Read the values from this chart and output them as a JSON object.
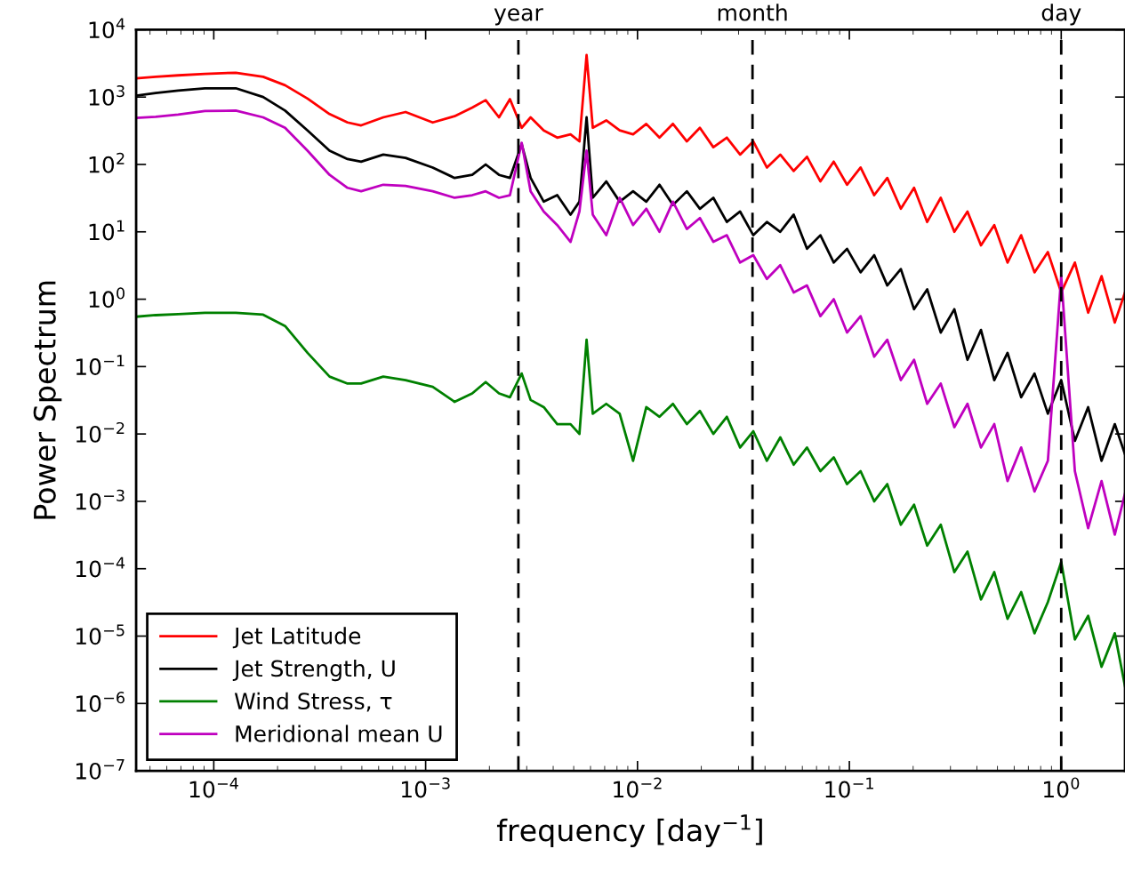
{
  "chart_data": {
    "type": "line",
    "xlabel": "frequency [day$^{−1}$]",
    "ylabel": "Power Spectrum",
    "log": "xy",
    "grid": false,
    "legend": "bottom left",
    "line_style": "solid",
    "marker": "none",
    "xlim": [
      4.3e-05,
      2.0
    ],
    "ylim": [
      1e-07,
      10000.0
    ],
    "xticks": [
      {
        "value": 0.0001,
        "label": "10$^{−4}$"
      },
      {
        "value": 0.001,
        "label": "10$^{−3}$"
      },
      {
        "value": 0.01,
        "label": "10$^{−2}$"
      },
      {
        "value": 0.1,
        "label": "10$^{−1}$"
      },
      {
        "value": 1,
        "label": "10$^{0}$"
      }
    ],
    "yticks": [
      {
        "value": 1e-07,
        "label": "10$^{−7}$"
      },
      {
        "value": 1e-06,
        "label": "10$^{−6}$"
      },
      {
        "value": 1e-05,
        "label": "10$^{−5}$"
      },
      {
        "value": 0.0001,
        "label": "10$^{−4}$"
      },
      {
        "value": 0.001,
        "label": "10$^{−3}$"
      },
      {
        "value": 0.01,
        "label": "10$^{−2}$"
      },
      {
        "value": 0.1,
        "label": "10$^{−1}$"
      },
      {
        "value": 1,
        "label": "10$^{0}$"
      },
      {
        "value": 10,
        "label": "10$^{1}$"
      },
      {
        "value": 100,
        "label": "10$^{2}$"
      },
      {
        "value": 1000,
        "label": "10$^{3}$"
      },
      {
        "value": 10000,
        "label": "10$^{4}$"
      }
    ],
    "ref_lines": [
      {
        "axis": "x",
        "value": 0.00274,
        "label": "year",
        "color": "#000000",
        "line_style": "dashed"
      },
      {
        "axis": "x",
        "value": 0.0349,
        "label": "month",
        "color": "#000000",
        "line_style": "dashed"
      },
      {
        "axis": "x",
        "value": 1,
        "label": "day",
        "color": "#000000",
        "line_style": "dashed"
      }
    ],
    "x": [
      4.3e-05,
      5.32e-05,
      6.79e-05,
      9.08e-05,
      0.000127,
      0.000171,
      0.000217,
      0.000277,
      0.000352,
      0.000428,
      0.000496,
      0.000631,
      0.000804,
      0.00108,
      0.00137,
      0.00166,
      0.00192,
      0.00222,
      0.0025,
      0.00284,
      0.00313,
      0.00361,
      0.00418,
      0.00483,
      0.00532,
      0.00575,
      0.00615,
      0.00712,
      0.00824,
      0.00953,
      0.011,
      0.0127,
      0.0147,
      0.0171,
      0.0197,
      0.0228,
      0.0264,
      0.0305,
      0.0352,
      0.0408,
      0.0472,
      0.0546,
      0.0631,
      0.073,
      0.0844,
      0.0975,
      0.113,
      0.131,
      0.151,
      0.175,
      0.202,
      0.233,
      0.27,
      0.313,
      0.361,
      0.418,
      0.483,
      0.558,
      0.647,
      0.748,
      0.865,
      1.0,
      1.16,
      1.34,
      1.55,
      1.79,
      2.0
    ],
    "series": [
      {
        "name": "Jet Latitude",
        "color": "#ff0000",
        "values": [
          1900,
          2000,
          2100,
          2200,
          2300,
          2000,
          1500,
          950,
          560,
          420,
          380,
          500,
          600,
          420,
          520,
          700,
          900,
          500,
          930,
          350,
          500,
          320,
          250,
          280,
          220,
          4200,
          350,
          450,
          320,
          280,
          400,
          250,
          400,
          220,
          350,
          180,
          250,
          140,
          220,
          90,
          140,
          80,
          130,
          56,
          110,
          50,
          90,
          35,
          63,
          22,
          45,
          14,
          32,
          10,
          20,
          6.3,
          12.6,
          3.5,
          8.9,
          2.5,
          5,
          1.26,
          3.5,
          0.63,
          2.2,
          0.45,
          1.26
        ]
      },
      {
        "name": "Jet Strength, U",
        "color": "#000000",
        "values": [
          1050,
          1150,
          1250,
          1350,
          1350,
          1000,
          630,
          320,
          160,
          120,
          110,
          140,
          125,
          90,
          63,
          70,
          100,
          70,
          63,
          200,
          63,
          28,
          35,
          18,
          28,
          500,
          32,
          56,
          28,
          40,
          28,
          50,
          25,
          40,
          22,
          32,
          14,
          20,
          8.9,
          14,
          10,
          18,
          5.6,
          8.9,
          3.5,
          5.6,
          2.5,
          4.5,
          1.6,
          2.8,
          0.71,
          1.4,
          0.32,
          0.71,
          0.126,
          0.35,
          0.063,
          0.16,
          0.035,
          0.079,
          0.02,
          0.063,
          0.0079,
          0.025,
          0.004,
          0.014,
          0.005
        ]
      },
      {
        "name": "Wind Stress, τ",
        "color": "#008000",
        "values": [
          0.55,
          0.58,
          0.6,
          0.63,
          0.63,
          0.59,
          0.4,
          0.16,
          0.071,
          0.056,
          0.056,
          0.071,
          0.063,
          0.05,
          0.03,
          0.04,
          0.059,
          0.04,
          0.035,
          0.079,
          0.032,
          0.025,
          0.014,
          0.014,
          0.01,
          0.25,
          0.02,
          0.028,
          0.02,
          0.004,
          0.025,
          0.018,
          0.028,
          0.014,
          0.022,
          0.01,
          0.018,
          0.0063,
          0.011,
          0.004,
          0.0089,
          0.0035,
          0.0063,
          0.0028,
          0.0045,
          0.0018,
          0.0028,
          0.001,
          0.0018,
          0.00045,
          0.00089,
          0.00022,
          0.00045,
          8.9e-05,
          0.00018,
          3.5e-05,
          8.9e-05,
          1.8e-05,
          4.5e-05,
          1.1e-05,
          3.2e-05,
          0.000126,
          8.9e-06,
          2e-05,
          3.5e-06,
          1.1e-05,
          1.8e-06
        ]
      },
      {
        "name": "Meridional mean U",
        "color": "#bf00bf",
        "values": [
          490,
          510,
          550,
          620,
          630,
          500,
          350,
          160,
          70,
          45,
          40,
          50,
          48,
          40,
          32,
          35,
          40,
          32,
          35,
          210,
          40,
          20,
          12.6,
          7.1,
          20,
          160,
          18,
          8.9,
          32,
          12.6,
          22,
          10,
          28,
          11,
          16,
          7.1,
          8.9,
          3.5,
          4.5,
          2,
          3.2,
          1.26,
          1.6,
          0.56,
          1,
          0.32,
          0.56,
          0.14,
          0.25,
          0.063,
          0.126,
          0.028,
          0.056,
          0.0126,
          0.028,
          0.0063,
          0.014,
          0.002,
          0.0063,
          0.0014,
          0.004,
          2.2,
          0.0028,
          0.0004,
          0.002,
          0.00032,
          0.0013
        ]
      }
    ]
  }
}
